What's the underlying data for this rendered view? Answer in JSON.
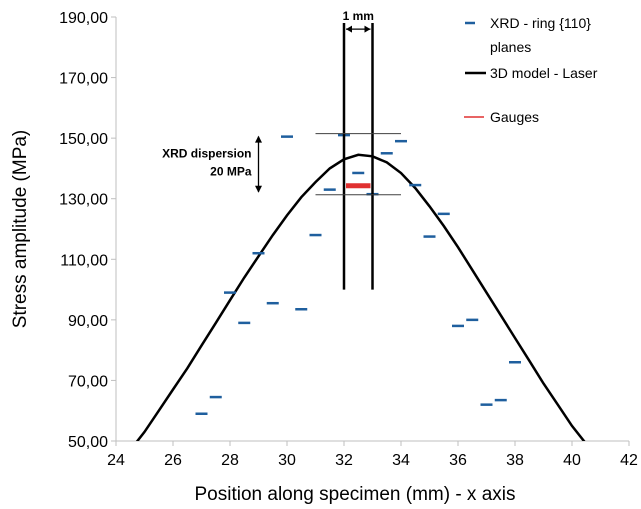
{
  "chart_data": {
    "type": "scatter",
    "xlabel": "Position along specimen (mm) - x axis",
    "ylabel": "Stress amplitude (MPa)",
    "xlim": [
      24,
      42
    ],
    "ylim": [
      50,
      190
    ],
    "x_ticks": [
      "24",
      "26",
      "28",
      "30",
      "32",
      "34",
      "36",
      "38",
      "40",
      "42"
    ],
    "y_ticks": [
      "50,00",
      "70,00",
      "90,00",
      "110,00",
      "130,00",
      "150,00",
      "170,00",
      "190,00"
    ],
    "grid": false,
    "legend_position": "top-right",
    "series": [
      {
        "name": "XRD - ring {110} planes",
        "kind": "dash-markers",
        "color": "#1f5f9e",
        "points": [
          [
            27.0,
            59
          ],
          [
            27.5,
            64.5
          ],
          [
            28.0,
            99
          ],
          [
            28.5,
            89
          ],
          [
            29.0,
            112
          ],
          [
            29.5,
            95.5
          ],
          [
            30.0,
            150.5
          ],
          [
            30.5,
            93.5
          ],
          [
            31.0,
            118
          ],
          [
            31.5,
            133
          ],
          [
            32.0,
            151
          ],
          [
            32.5,
            138.5
          ],
          [
            33.0,
            131.5
          ],
          [
            33.5,
            145
          ],
          [
            34.0,
            149
          ],
          [
            34.5,
            134.5
          ],
          [
            35.0,
            117.5
          ],
          [
            35.5,
            125
          ],
          [
            36.0,
            88
          ],
          [
            36.5,
            90
          ],
          [
            37.0,
            62
          ],
          [
            37.5,
            63.5
          ],
          [
            38.0,
            76
          ]
        ]
      },
      {
        "name": "3D model - Laser",
        "kind": "line",
        "color": "#000000",
        "points": [
          [
            24.0,
            41
          ],
          [
            24.5,
            47
          ],
          [
            25.0,
            53
          ],
          [
            25.5,
            60
          ],
          [
            26.0,
            67
          ],
          [
            26.5,
            74
          ],
          [
            27.0,
            81.5
          ],
          [
            27.5,
            89
          ],
          [
            28.0,
            96.5
          ],
          [
            28.5,
            104
          ],
          [
            29.0,
            111
          ],
          [
            29.5,
            118
          ],
          [
            30.0,
            124.5
          ],
          [
            30.5,
            130.5
          ],
          [
            31.0,
            135.5
          ],
          [
            31.5,
            140
          ],
          [
            32.0,
            143
          ],
          [
            32.5,
            144.5
          ],
          [
            33.0,
            144
          ],
          [
            33.5,
            142
          ],
          [
            34.0,
            138.5
          ],
          [
            34.5,
            133.5
          ],
          [
            35.0,
            127.5
          ],
          [
            35.5,
            121
          ],
          [
            36.0,
            114
          ],
          [
            36.5,
            106.5
          ],
          [
            37.0,
            99
          ],
          [
            37.5,
            91.5
          ],
          [
            38.0,
            84
          ],
          [
            38.5,
            76.5
          ],
          [
            39.0,
            69
          ],
          [
            39.5,
            62
          ],
          [
            40.0,
            55
          ],
          [
            40.5,
            49
          ],
          [
            41.0,
            43
          ]
        ]
      },
      {
        "name": "Gauges",
        "kind": "segment",
        "color": "#e03030",
        "points": [
          [
            32.0,
            134.3
          ],
          [
            33.0,
            134.3
          ]
        ]
      }
    ],
    "annotations": {
      "dispersion_label_line1": "XRD dispersion",
      "dispersion_label_line2": "20 MPa",
      "dispersion_upper_y": 151.5,
      "dispersion_lower_y": 131.3,
      "dispersion_line_x": [
        31.0,
        34.0
      ],
      "dispersion_arrow_x": 29.0,
      "gauge_width_label": "1 mm",
      "gauge_lines_x": [
        32.0,
        33.0
      ],
      "gauge_lines_y": [
        100,
        188
      ],
      "gauge_arrow_y": 186
    },
    "legend": {
      "item1_line1": "XRD - ring {110}",
      "item1_line2": "planes",
      "item2": "3D model - Laser",
      "item3": "Gauges"
    }
  }
}
